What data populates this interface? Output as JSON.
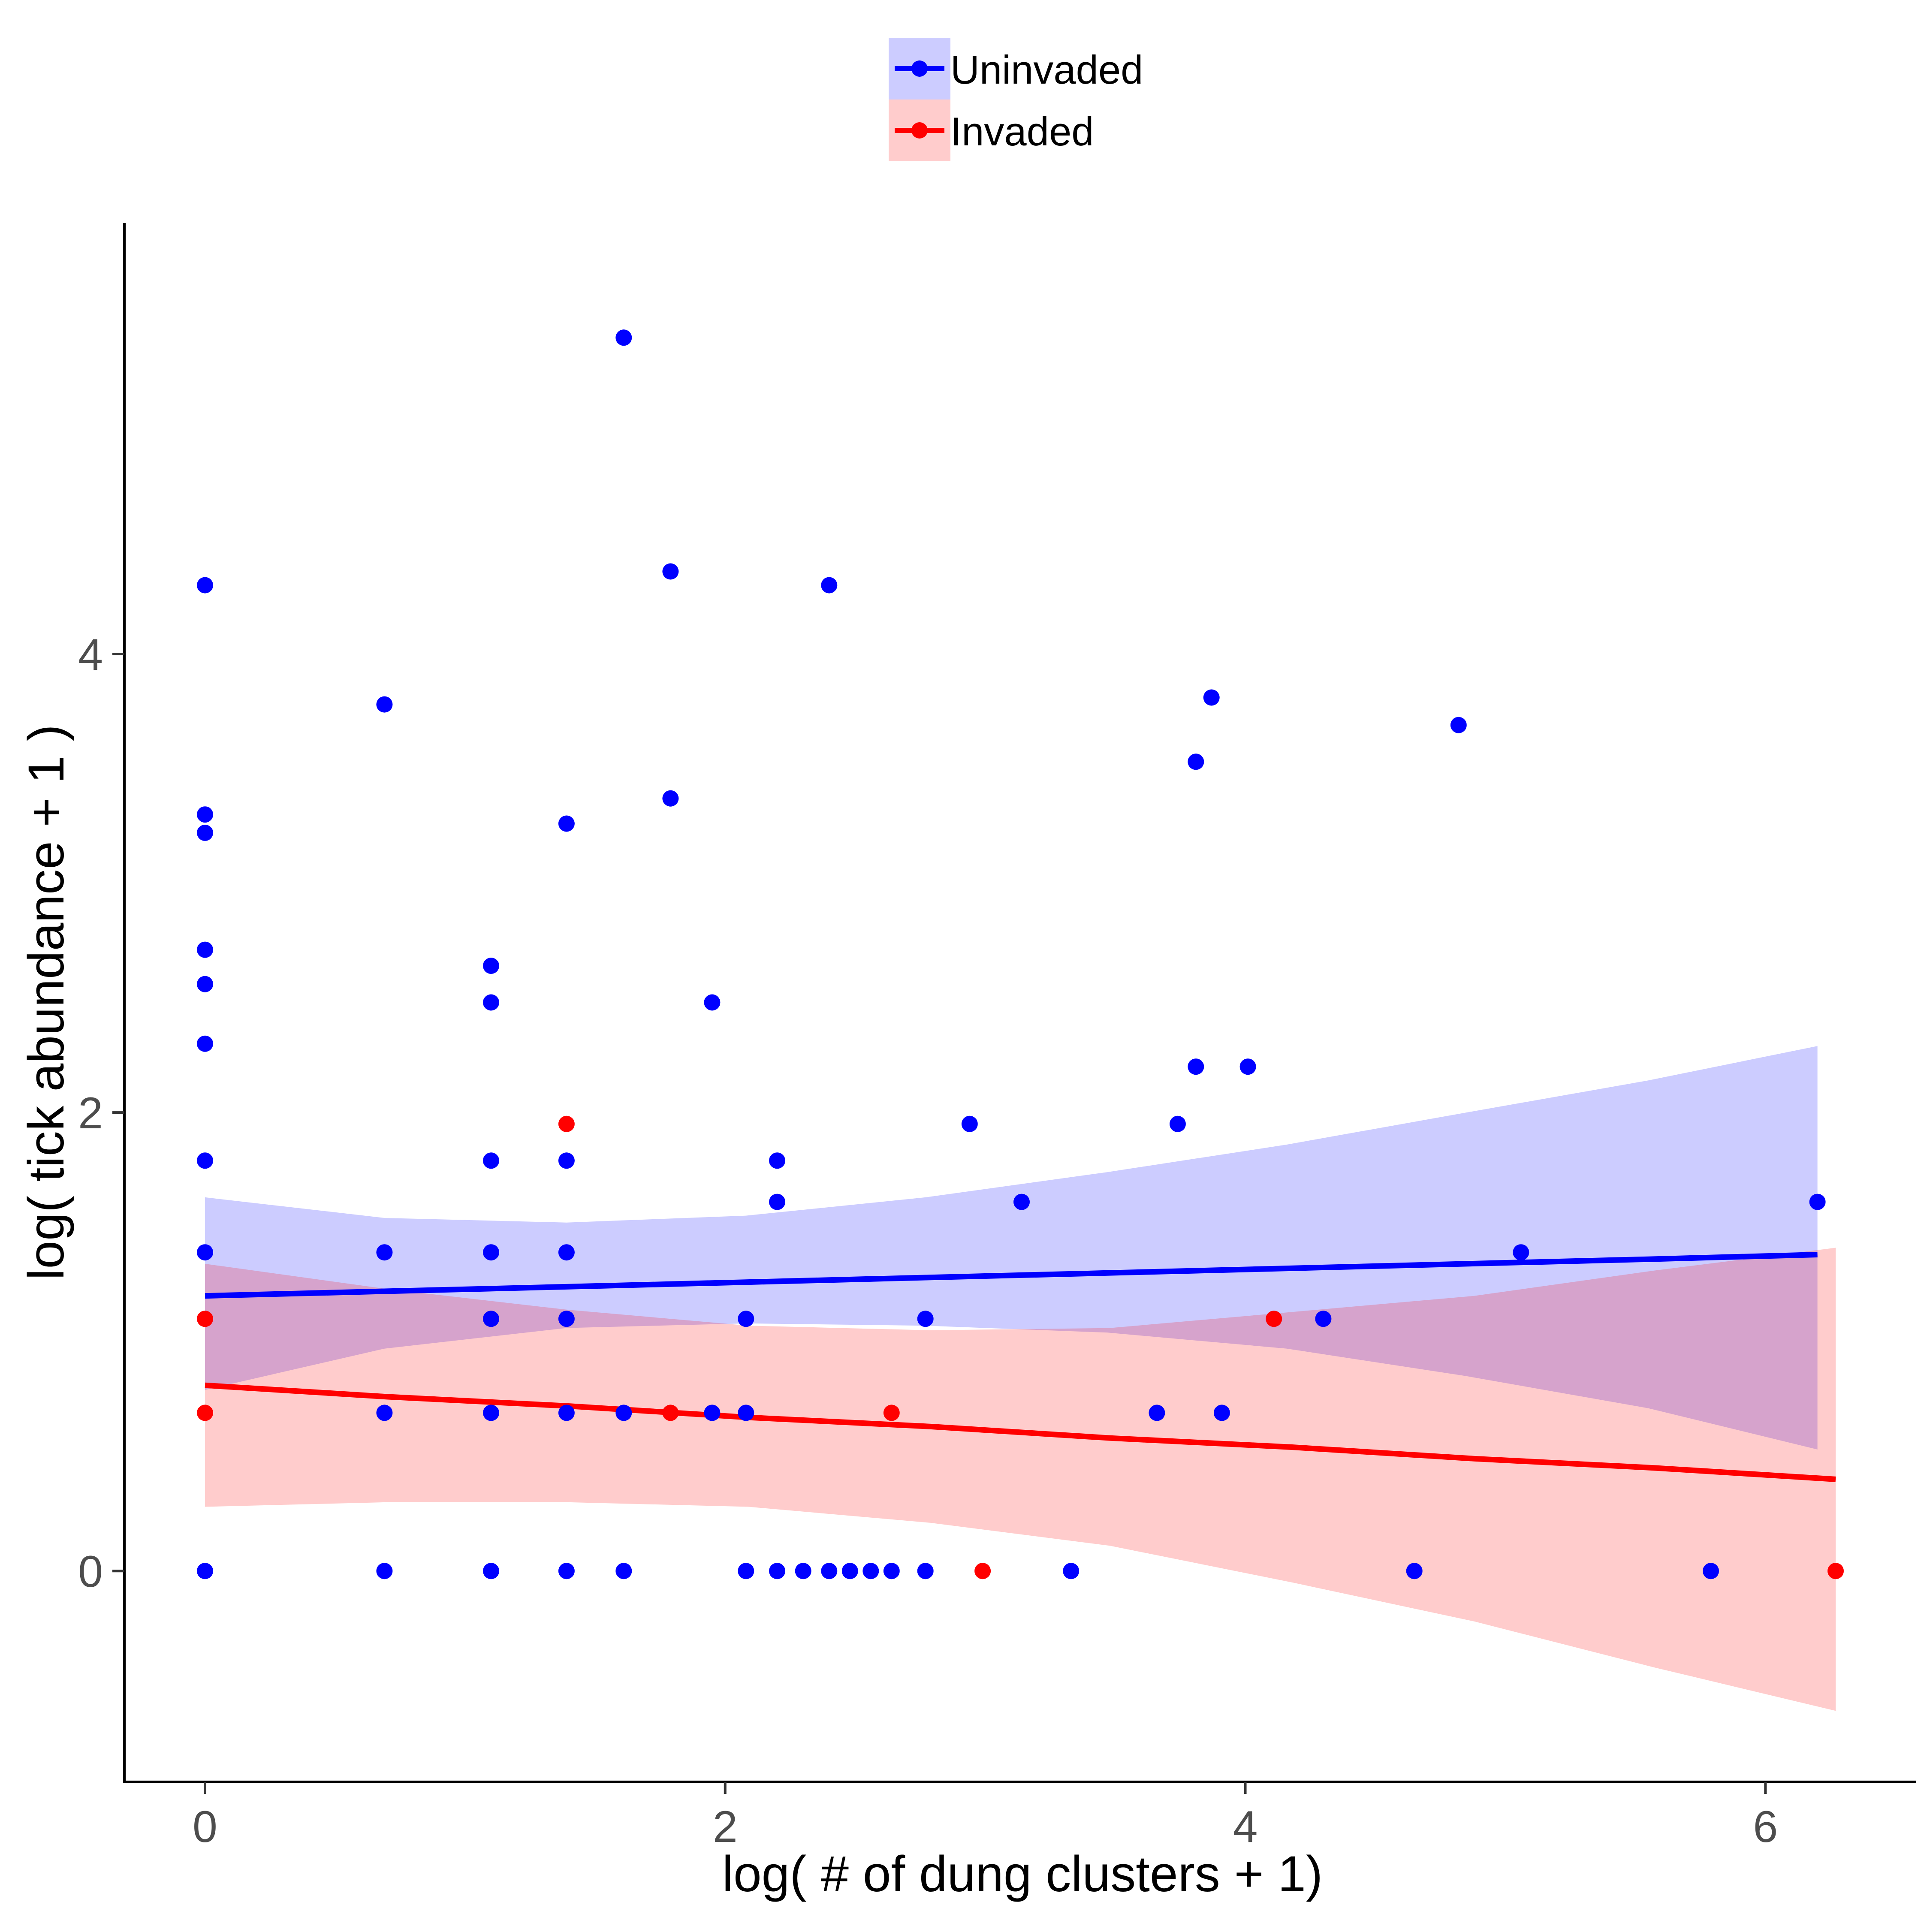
{
  "chart_data": {
    "type": "scatter",
    "title": "",
    "xlabel": "log( # of dung clusters + 1)",
    "ylabel": "log( tick abundance + 1 )",
    "xlim": [
      -0.31,
      6.58
    ],
    "ylim": [
      -0.92,
      5.88
    ],
    "x_ticks": [
      0,
      2,
      4,
      6
    ],
    "x_tick_labels": [
      "0",
      "2",
      "4",
      "6"
    ],
    "y_ticks": [
      0,
      2,
      4
    ],
    "y_tick_labels": [
      "0",
      "2",
      "4"
    ],
    "grid": false,
    "legend": {
      "position": "top-center",
      "orientation": "vertical"
    },
    "series": [
      {
        "name": "Uninvaded",
        "color": "#0000ff",
        "fill_color": "#ccccff",
        "points": [
          [
            0,
            4.3
          ],
          [
            0,
            3.3
          ],
          [
            0,
            3.22
          ],
          [
            0,
            2.71
          ],
          [
            0,
            2.56
          ],
          [
            0,
            2.3
          ],
          [
            0,
            1.79
          ],
          [
            0,
            1.39
          ],
          [
            0,
            0
          ],
          [
            0.69,
            3.78
          ],
          [
            0.69,
            1.39
          ],
          [
            0.69,
            0.69
          ],
          [
            0.69,
            0
          ],
          [
            1.1,
            2.64
          ],
          [
            1.1,
            2.48
          ],
          [
            1.1,
            1.79
          ],
          [
            1.1,
            1.39
          ],
          [
            1.1,
            1.1
          ],
          [
            1.1,
            0.69
          ],
          [
            1.1,
            0
          ],
          [
            1.39,
            3.26
          ],
          [
            1.39,
            1.79
          ],
          [
            1.39,
            1.39
          ],
          [
            1.39,
            1.1
          ],
          [
            1.39,
            0.69
          ],
          [
            1.39,
            0
          ],
          [
            1.61,
            5.38
          ],
          [
            1.61,
            0.69
          ],
          [
            1.61,
            0
          ],
          [
            1.79,
            4.36
          ],
          [
            1.79,
            3.37
          ],
          [
            1.95,
            2.48
          ],
          [
            1.95,
            0.69
          ],
          [
            2.08,
            1.1
          ],
          [
            2.08,
            0.69
          ],
          [
            2.08,
            0
          ],
          [
            2.2,
            1.79
          ],
          [
            2.2,
            1.61
          ],
          [
            2.2,
            0
          ],
          [
            2.3,
            0
          ],
          [
            2.4,
            4.3
          ],
          [
            2.4,
            0
          ],
          [
            2.48,
            0
          ],
          [
            2.56,
            0
          ],
          [
            2.64,
            0
          ],
          [
            2.77,
            1.1
          ],
          [
            2.77,
            0
          ],
          [
            2.94,
            1.95
          ],
          [
            3.14,
            1.61
          ],
          [
            3.33,
            0
          ],
          [
            3.66,
            0.69
          ],
          [
            3.74,
            1.95
          ],
          [
            3.81,
            3.53
          ],
          [
            3.81,
            2.2
          ],
          [
            3.87,
            3.81
          ],
          [
            3.91,
            0.69
          ],
          [
            4.01,
            2.2
          ],
          [
            4.3,
            1.1
          ],
          [
            4.65,
            0
          ],
          [
            4.82,
            3.69
          ],
          [
            5.06,
            1.39
          ],
          [
            5.79,
            0
          ],
          [
            6.2,
            1.61
          ]
        ],
        "fit": {
          "x": [
            0,
            0.69,
            1.39,
            2.08,
            2.77,
            3.47,
            4.16,
            4.85,
            5.55,
            6.2
          ],
          "y": [
            1.2,
            1.22,
            1.24,
            1.26,
            1.28,
            1.3,
            1.32,
            1.34,
            1.36,
            1.38
          ],
          "lower": [
            0.79,
            0.97,
            1.06,
            1.08,
            1.07,
            1.04,
            0.97,
            0.85,
            0.71,
            0.53
          ],
          "upper": [
            1.63,
            1.54,
            1.52,
            1.55,
            1.63,
            1.74,
            1.86,
            2.0,
            2.14,
            2.29
          ]
        }
      },
      {
        "name": "Invaded",
        "color": "#ff0000",
        "fill_color": "#ffc9c9",
        "points": [
          [
            0,
            1.1
          ],
          [
            0,
            0.69
          ],
          [
            1.39,
            1.95
          ],
          [
            1.79,
            0.69
          ],
          [
            2.64,
            0.69
          ],
          [
            2.99,
            0
          ],
          [
            4.11,
            1.1
          ],
          [
            6.27,
            0
          ]
        ],
        "fit": {
          "x": [
            0,
            0.7,
            1.39,
            2.09,
            2.79,
            3.48,
            4.18,
            4.88,
            5.57,
            6.27
          ],
          "y": [
            0.81,
            0.76,
            0.72,
            0.67,
            0.63,
            0.58,
            0.54,
            0.49,
            0.45,
            0.4
          ],
          "lower": [
            0.28,
            0.3,
            0.3,
            0.28,
            0.21,
            0.11,
            -0.05,
            -0.22,
            -0.42,
            -0.61
          ],
          "upper": [
            1.34,
            1.23,
            1.14,
            1.07,
            1.05,
            1.06,
            1.13,
            1.2,
            1.31,
            1.41
          ]
        }
      }
    ]
  }
}
